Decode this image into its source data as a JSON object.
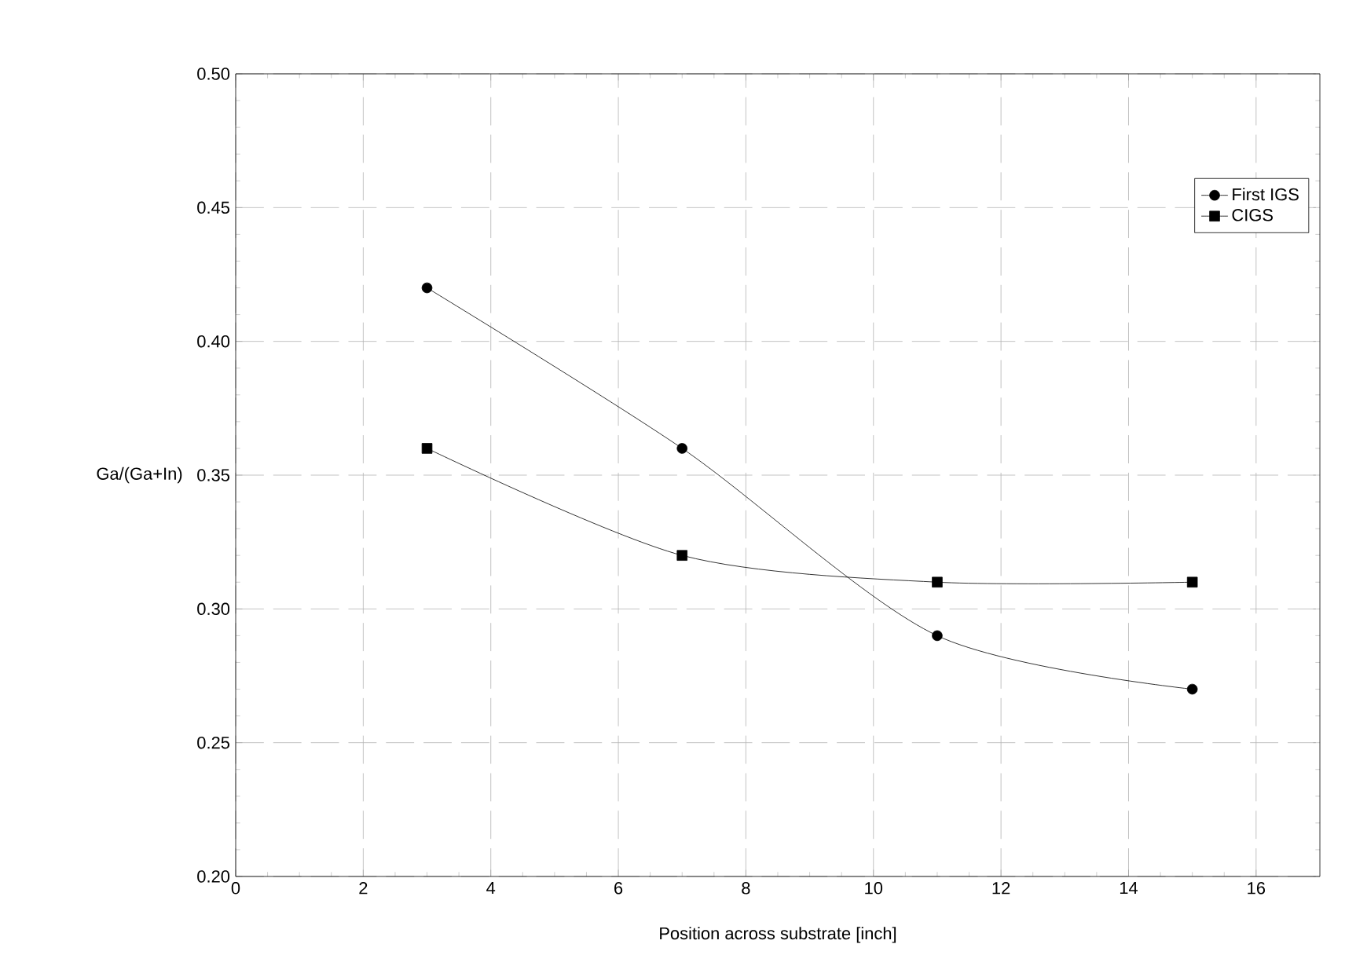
{
  "chart_data": {
    "type": "line",
    "xlabel": "Position across substrate [inch]",
    "ylabel": "Ga/(Ga+In)",
    "x": [
      3,
      7,
      11,
      15
    ],
    "series": [
      {
        "name": "First IGS",
        "color": "#000000",
        "marker": "circle",
        "values": [
          0.42,
          0.36,
          0.29,
          0.27
        ]
      },
      {
        "name": "CIGS",
        "color": "#000000",
        "marker": "square",
        "values": [
          0.36,
          0.32,
          0.31,
          0.31
        ]
      }
    ],
    "xlim": [
      0,
      17
    ],
    "xticks": [
      0,
      2,
      4,
      6,
      8,
      10,
      12,
      14,
      16
    ],
    "ylim": [
      0.2,
      0.5
    ],
    "yticks": [
      {
        "value": 0.2,
        "label": "0.20"
      },
      {
        "value": 0.25,
        "label": "0.25"
      },
      {
        "value": 0.3,
        "label": "0.30"
      },
      {
        "value": 0.35,
        "label": "0.35"
      },
      {
        "value": 0.4,
        "label": "0.40"
      },
      {
        "value": 0.45,
        "label": "0.45"
      },
      {
        "value": 0.5,
        "label": "0.50"
      }
    ],
    "grid": true,
    "line_style": "solid",
    "legend": "top right"
  }
}
